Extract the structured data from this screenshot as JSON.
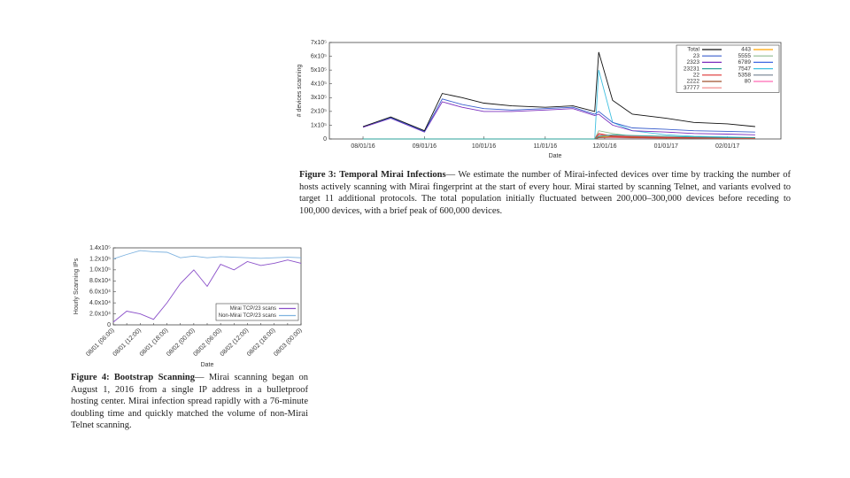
{
  "chart_data": [
    {
      "type": "line",
      "y_label": "# devices scanning",
      "x_label": "Date",
      "x": [
        "08/01/16",
        "08/15/16",
        "09/01/16",
        "09/10/16",
        "09/20/16",
        "10/01/16",
        "10/15/16",
        "11/01/16",
        "11/15/16",
        "11/26/16",
        "11/28/16",
        "12/05/16",
        "12/15/16",
        "01/01/17",
        "01/15/17",
        "02/01/17",
        "02/15/17"
      ],
      "xlim": [
        "07/15/16",
        "02/28/17"
      ],
      "xticks": [
        "08/01/16",
        "09/01/16",
        "10/01/16",
        "11/01/16",
        "12/01/16",
        "01/01/17",
        "02/01/17"
      ],
      "ylim": [
        0,
        700000
      ],
      "yticks": [
        0,
        {
          "value": 100000,
          "label": "1x10⁵"
        },
        {
          "value": 200000,
          "label": "2x10⁵"
        },
        {
          "value": 300000,
          "label": "3x10⁵"
        },
        {
          "value": 400000,
          "label": "4x10⁵"
        },
        {
          "value": 500000,
          "label": "5x10⁵"
        },
        {
          "value": 600000,
          "label": "6x10⁵"
        },
        {
          "value": 700000,
          "label": "7x10⁵"
        }
      ],
      "legend": "upper right",
      "series": [
        {
          "name": "Total",
          "color": "#111111",
          "values": [
            90000,
            160000,
            60000,
            330000,
            300000,
            260000,
            240000,
            230000,
            240000,
            200000,
            630000,
            280000,
            180000,
            150000,
            120000,
            110000,
            90000
          ]
        },
        {
          "name": "23",
          "color": "#3a5fcd",
          "values": [
            90000,
            155000,
            55000,
            290000,
            250000,
            220000,
            210000,
            220000,
            230000,
            180000,
            200000,
            120000,
            80000,
            70000,
            60000,
            55000,
            50000
          ]
        },
        {
          "name": "2323",
          "color": "#7b2fbe",
          "values": [
            85000,
            150000,
            50000,
            270000,
            230000,
            200000,
            200000,
            210000,
            220000,
            170000,
            180000,
            100000,
            60000,
            50000,
            40000,
            35000,
            30000
          ]
        },
        {
          "name": "23231",
          "color": "#2aa198",
          "values": [
            0,
            0,
            0,
            0,
            0,
            0,
            0,
            0,
            0,
            0,
            20000,
            30000,
            25000,
            20000,
            15000,
            10000,
            10000
          ]
        },
        {
          "name": "22",
          "color": "#dd3333",
          "values": [
            0,
            0,
            0,
            0,
            0,
            0,
            0,
            0,
            0,
            0,
            40000,
            20000,
            15000,
            10000,
            10000,
            8000,
            8000
          ]
        },
        {
          "name": "2222",
          "color": "#a0522d",
          "values": [
            0,
            0,
            0,
            0,
            0,
            0,
            0,
            0,
            0,
            0,
            10000,
            15000,
            10000,
            8000,
            6000,
            5000,
            5000
          ]
        },
        {
          "name": "37777",
          "color": "#f08080",
          "values": [
            0,
            0,
            0,
            0,
            0,
            0,
            0,
            0,
            0,
            0,
            30000,
            25000,
            20000,
            15000,
            10000,
            8000,
            6000
          ]
        },
        {
          "name": "443",
          "color": "#ffa500",
          "values": [
            0,
            0,
            0,
            0,
            0,
            0,
            0,
            0,
            0,
            0,
            20000,
            15000,
            10000,
            8000,
            6000,
            5000,
            5000
          ]
        },
        {
          "name": "5555",
          "color": "#8fbc8f",
          "values": [
            0,
            0,
            0,
            0,
            0,
            0,
            0,
            0,
            0,
            0,
            60000,
            40000,
            20000,
            15000,
            10000,
            8000,
            6000
          ]
        },
        {
          "name": "6789",
          "color": "#4169e1",
          "values": [
            0,
            0,
            0,
            0,
            0,
            0,
            0,
            0,
            0,
            0,
            30000,
            25000,
            20000,
            15000,
            10000,
            10000,
            10000
          ]
        },
        {
          "name": "7547",
          "color": "#40c0e0",
          "values": [
            0,
            0,
            0,
            0,
            0,
            0,
            0,
            0,
            0,
            0,
            500000,
            120000,
            60000,
            30000,
            20000,
            15000,
            10000
          ]
        },
        {
          "name": "5358",
          "color": "#708090",
          "values": [
            0,
            0,
            0,
            0,
            0,
            0,
            0,
            0,
            0,
            0,
            15000,
            20000,
            15000,
            10000,
            8000,
            6000,
            5000
          ]
        },
        {
          "name": "80",
          "color": "#ff69b4",
          "values": [
            0,
            0,
            0,
            0,
            0,
            0,
            0,
            0,
            0,
            0,
            10000,
            10000,
            8000,
            6000,
            5000,
            4000,
            4000
          ]
        }
      ],
      "caption_label": "Figure 3:",
      "caption_title": "Temporal Mirai Infections",
      "caption_text": "— We estimate the number of Mirai-infected devices over time by tracking the number of hosts actively scanning with Mirai fingerprint at the start of every hour. Mirai started by scanning Telnet, and variants evolved to target 11 additional protocols. The total population initially fluctuated between 200,000–300,000 devices before receding to 100,000 devices, with a brief peak of 600,000 devices."
    },
    {
      "type": "line",
      "y_label": "Hourly Scanning IPs",
      "x_label": "Date",
      "categories": [
        "08/01 (06:00)",
        null,
        "08/01 (12:00)",
        null,
        "08/01 (18:00)",
        null,
        "08/02 (00:00)",
        null,
        "08/02 (06:00)",
        null,
        "08/02 (12:00)",
        null,
        "08/02 (18:00)",
        null,
        "08/03 (00:00)"
      ],
      "ylim": [
        0,
        140000
      ],
      "yticks": [
        0,
        {
          "value": 20000,
          "label": "2.0x10⁴"
        },
        {
          "value": 40000,
          "label": "4.0x10⁴"
        },
        {
          "value": 60000,
          "label": "6.0x10⁴"
        },
        {
          "value": 80000,
          "label": "8.0x10⁴"
        },
        {
          "value": 100000,
          "label": "1.0x10⁵"
        },
        {
          "value": 120000,
          "label": "1.2x10⁵"
        },
        {
          "value": 140000,
          "label": "1.4x10⁵"
        }
      ],
      "legend": "lower right",
      "series": [
        {
          "name": "Mirai TCP/23 scans",
          "color": "#8a4fc9",
          "values": [
            5000,
            25000,
            20000,
            10000,
            40000,
            75000,
            100000,
            70000,
            110000,
            100000,
            115000,
            108000,
            112000,
            118000,
            112000
          ]
        },
        {
          "name": "Non-Mirai TCP/23 scans",
          "color": "#7fb3e0",
          "values": [
            120000,
            128000,
            135000,
            133000,
            132000,
            122000,
            125000,
            122000,
            124000,
            123000,
            122000,
            121000,
            122000,
            123000,
            122000
          ]
        }
      ],
      "caption_label": "Figure 4:",
      "caption_title": "Bootstrap Scanning",
      "caption_text": "— Mirai scanning began on August 1, 2016 from a single IP address in a bulletproof hosting center. Mirai infection spread rapidly with a 76-minute doubling time and quickly matched the volume of non-Mirai Telnet scanning."
    }
  ]
}
